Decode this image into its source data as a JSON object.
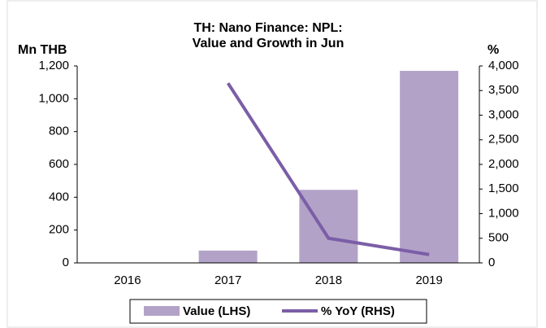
{
  "chart_data": {
    "type": "bar",
    "title": "TH: Nano Finance: NPL:",
    "subtitle": "Value and Growth in Jun",
    "ylabel": "Mn THB",
    "y2label": "%",
    "categories": [
      "2016",
      "2017",
      "2018",
      "2019"
    ],
    "series": [
      {
        "name": "Value (LHS)",
        "type": "bar",
        "color": "#b3a2c7",
        "values": [
          0,
          75,
          445,
          1170
        ]
      },
      {
        "name": "% YoY (RHS)",
        "type": "line",
        "axis": "y2",
        "color": "#7b5ea7",
        "values": [
          null,
          3650,
          500,
          170
        ]
      }
    ],
    "ylim": [
      0,
      1200
    ],
    "yticks": [
      0,
      200,
      400,
      600,
      800,
      {
        "value": 1000,
        "label": "1,000"
      },
      {
        "value": 1200,
        "label": "1,200"
      }
    ],
    "y2lim": [
      0,
      4000
    ],
    "y2ticks": [
      0,
      500,
      {
        "value": 1000,
        "label": "1,000"
      },
      {
        "value": 1500,
        "label": "1,500"
      },
      {
        "value": 2000,
        "label": "2,000"
      },
      {
        "value": 2500,
        "label": "2,500"
      },
      {
        "value": 3000,
        "label": "3,000"
      },
      {
        "value": 3500,
        "label": "3,500"
      },
      {
        "value": 4000,
        "label": "4,000"
      }
    ],
    "legend": "bottom"
  }
}
